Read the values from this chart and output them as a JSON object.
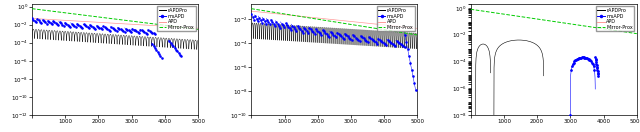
{
  "figsize": [
    6.4,
    1.32
  ],
  "dpi": 100,
  "x_max": 5000,
  "x_ticks": [
    0,
    1000,
    2000,
    3000,
    4000,
    5000
  ],
  "legend_labels": [
    "rAPDPro",
    "msAPD",
    "APD",
    "Mirror-Prox"
  ],
  "colors": {
    "rAPDPro": "black",
    "msAPD": "blue",
    "APD": "#ff9999",
    "MirrorProx": "#00cc00"
  },
  "panel1": {
    "ylim": [
      1e-12,
      2.0
    ],
    "yticks": [
      1e-12,
      1e-10,
      1e-08,
      1e-06,
      0.0001,
      0.01,
      1.0
    ],
    "mp_y0": 0.6,
    "mp_y1": 0.003,
    "apd_y0": 0.05,
    "apd_decay": 2000
  },
  "panel2": {
    "ylim": [
      1e-10,
      0.2
    ],
    "yticks": [
      1e-10,
      1e-08,
      1e-06,
      0.0001,
      0.01
    ],
    "mp_y0": 0.08,
    "mp_y1": 0.0005,
    "apd_y0": 0.05,
    "apd_decay": 1500
  },
  "panel3": {
    "ylim": [
      1e-08,
      2.0
    ],
    "yticks": [
      1e-08,
      1e-06,
      0.0001,
      0.01,
      1.0
    ],
    "mp_y0": 0.8,
    "mp_y1": 0.012
  },
  "lw": 0.5,
  "lw_mp": 0.7,
  "marker_size": 1.2,
  "legend_fontsize": 3.5,
  "tick_fontsize": 4.0
}
